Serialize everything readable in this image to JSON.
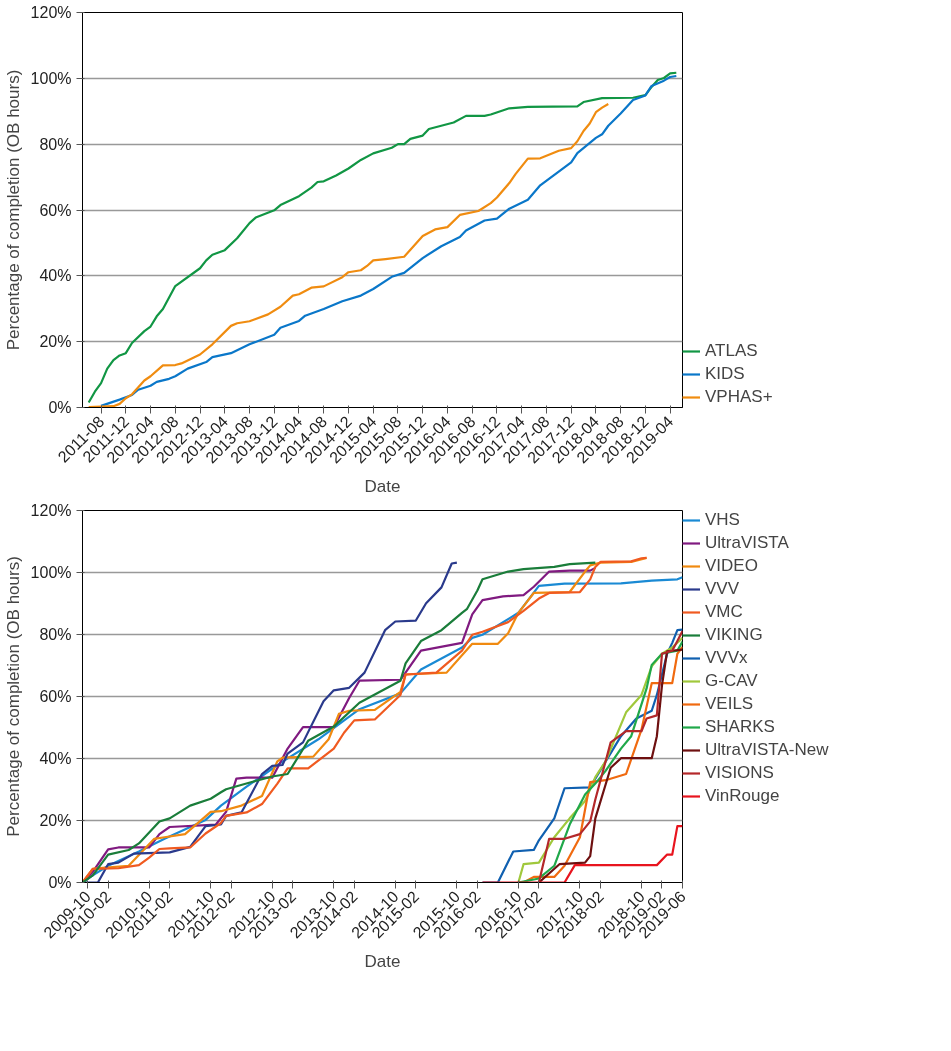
{
  "chart_data": [
    {
      "type": "line",
      "xlabel": "Date",
      "ylabel": "Percentage of completion (OB hours)",
      "xlim": [
        "2011-05",
        "2019-06"
      ],
      "xticks": [
        "2011-08",
        "2011-12",
        "2012-04",
        "2012-08",
        "2012-12",
        "2013-04",
        "2013-08",
        "2013-12",
        "2014-04",
        "2014-08",
        "2014-12",
        "2015-04",
        "2015-08",
        "2015-12",
        "2016-04",
        "2016-08",
        "2016-12",
        "2017-04",
        "2017-08",
        "2017-12",
        "2018-04",
        "2018-08",
        "2018-12",
        "2019-04"
      ],
      "ylim": [
        0,
        120
      ],
      "yticks": [
        {
          "value": 0,
          "label": "0%"
        },
        {
          "value": 20,
          "label": "20%"
        },
        {
          "value": 40,
          "label": "40%"
        },
        {
          "value": 60,
          "label": "60%"
        },
        {
          "value": 80,
          "label": "80%"
        },
        {
          "value": 100,
          "label": "100%"
        },
        {
          "value": 120,
          "label": "120%"
        }
      ],
      "grid": "y",
      "legend": "bottom right",
      "line_style": "solid",
      "series": [
        {
          "name": "ATLAS",
          "color": "#119644",
          "x": [
            "2011-06",
            "2011-07",
            "2011-08",
            "2011-09",
            "2011-10",
            "2011-11",
            "2011-12",
            "2012-01",
            "2012-03",
            "2012-04",
            "2012-05",
            "2012-06",
            "2012-08",
            "2012-12",
            "2013-01",
            "2013-02",
            "2013-04",
            "2013-06",
            "2013-08",
            "2013-09",
            "2013-12",
            "2014-01",
            "2014-04",
            "2014-06",
            "2014-07",
            "2014-08",
            "2014-10",
            "2014-12",
            "2015-02",
            "2015-04",
            "2015-07",
            "2015-08",
            "2015-09",
            "2015-10",
            "2015-12",
            "2016-01",
            "2016-05",
            "2016-07",
            "2016-10",
            "2016-11",
            "2017-02",
            "2017-05",
            "2018-01",
            "2018-02",
            "2018-05",
            "2018-10",
            "2018-12",
            "2019-01",
            "2019-02",
            "2019-03",
            "2019-04",
            "2019-05"
          ],
          "values": [
            1.5,
            4.8,
            7.4,
            11.8,
            14.4,
            15.8,
            16.5,
            19.6,
            23.2,
            24.6,
            27.7,
            29.9,
            36.9,
            42.3,
            44.7,
            46.4,
            47.8,
            51.4,
            56,
            57.7,
            59.9,
            61.5,
            64.2,
            66.8,
            68.5,
            68.7,
            70.5,
            72.6,
            75.2,
            77.2,
            78.9,
            80,
            80,
            81.6,
            82.6,
            84.6,
            86.6,
            88.6,
            88.6,
            89,
            90.9,
            91.3,
            91.5,
            92.8,
            94,
            94.1,
            94.9,
            97.4,
            99.5,
            100.1,
            101.5,
            101.7
          ]
        },
        {
          "name": "KIDS",
          "color": "#0a77c9",
          "x": [
            "2011-08",
            "2011-11",
            "2012-01",
            "2012-02",
            "2012-04",
            "2012-05",
            "2012-07",
            "2012-08",
            "2012-10",
            "2013-01",
            "2013-02",
            "2013-05",
            "2013-08",
            "2013-12",
            "2014-01",
            "2014-04",
            "2014-05",
            "2014-08",
            "2014-11",
            "2015-02",
            "2015-04",
            "2015-07",
            "2015-09",
            "2015-12",
            "2016-03",
            "2016-06",
            "2016-07",
            "2016-10",
            "2016-12",
            "2017-02",
            "2017-05",
            "2017-07",
            "2017-12",
            "2018-01",
            "2018-04",
            "2018-05",
            "2018-06",
            "2018-08",
            "2018-10",
            "2018-12",
            "2019-01",
            "2019-03",
            "2019-04",
            "2019-05"
          ],
          "values": [
            0.5,
            2.4,
            3.8,
            5.4,
            6.6,
            7.8,
            8.7,
            9.5,
            11.8,
            13.8,
            15.3,
            16.5,
            19.2,
            22.1,
            24.2,
            26.3,
            27.9,
            29.9,
            32.3,
            34,
            36,
            39.7,
            40.9,
            45.4,
            49,
            51.8,
            53.8,
            56.8,
            57.4,
            60.4,
            63.1,
            67.5,
            74.5,
            77.3,
            81.9,
            83,
            85.6,
            89.3,
            93.4,
            94.8,
            97.7,
            99.3,
            100.4,
            100.7
          ]
        },
        {
          "name": "VPHAS+",
          "color": "#f08c10",
          "x": [
            "2011-06",
            "2011-10",
            "2011-11",
            "2011-12",
            "2012-01",
            "2012-03",
            "2012-04",
            "2012-06",
            "2012-08",
            "2012-09",
            "2012-11",
            "2012-12",
            "2013-02",
            "2013-05",
            "2013-06",
            "2013-08",
            "2013-11",
            "2014-01",
            "2014-03",
            "2014-04",
            "2014-06",
            "2014-08",
            "2014-11",
            "2014-12",
            "2015-02",
            "2015-03",
            "2015-04",
            "2015-06",
            "2015-09",
            "2015-12",
            "2016-02",
            "2016-04",
            "2016-06",
            "2016-09",
            "2016-11",
            "2016-12",
            "2017-02",
            "2017-03",
            "2017-05",
            "2017-07",
            "2017-10",
            "2017-12",
            "2018-01",
            "2018-02",
            "2018-03",
            "2018-04",
            "2018-05",
            "2018-06"
          ],
          "values": [
            0.1,
            0.4,
            1.1,
            2.8,
            4,
            8.2,
            9.5,
            12.8,
            12.9,
            13.4,
            15.2,
            16.1,
            19.2,
            24.8,
            25.6,
            26.2,
            28.3,
            30.6,
            34,
            34.4,
            36.4,
            36.8,
            39.6,
            41.1,
            41.7,
            43,
            44.7,
            45.1,
            45.8,
            52.1,
            54.1,
            54.8,
            58.5,
            59.7,
            62.1,
            63.8,
            68.2,
            70.9,
            75.6,
            75.7,
            78,
            78.8,
            80.9,
            84,
            86.3,
            89.7,
            91.1,
            92.2
          ]
        }
      ]
    },
    {
      "type": "line",
      "xlabel": "Date",
      "ylabel": "Percentage of completion (OB hours)",
      "xlim": [
        "2009-09",
        "2019-06"
      ],
      "xticks": [
        "2009-10",
        "2010-02",
        "2010-10",
        "2011-02",
        "2011-10",
        "2012-02",
        "2012-10",
        "2013-02",
        "2013-10",
        "2014-02",
        "2014-10",
        "2015-02",
        "2015-10",
        "2016-02",
        "2016-10",
        "2017-02",
        "2017-10",
        "2018-02",
        "2018-10",
        "2019-02",
        "2019-06"
      ],
      "ylim": [
        0,
        120
      ],
      "yticks": [
        {
          "value": 0,
          "label": "0%"
        },
        {
          "value": 20,
          "label": "20%"
        },
        {
          "value": 40,
          "label": "40%"
        },
        {
          "value": 60,
          "label": "60%"
        },
        {
          "value": 80,
          "label": "80%"
        },
        {
          "value": 100,
          "label": "100%"
        },
        {
          "value": 120,
          "label": "120%"
        }
      ],
      "grid": "y",
      "legend": "top right",
      "line_style": "solid",
      "series": [
        {
          "name": "VHS",
          "color": "#1a8ad4",
          "x": [
            "2009-09",
            "2009-11",
            "2010-02",
            "2010-08",
            "2011-01",
            "2011-09",
            "2011-12",
            "2012-05",
            "2012-12",
            "2013-07",
            "2014-03",
            "2014-11",
            "2015-03",
            "2015-11",
            "2016-01",
            "2016-03",
            "2016-10",
            "2017-02",
            "2017-07",
            "2018-06",
            "2018-12",
            "2019-05",
            "2019-06"
          ],
          "values": [
            0,
            2.3,
            5.4,
            10,
            14.1,
            20.2,
            24.8,
            30.9,
            39,
            46.2,
            55.9,
            61,
            68.7,
            75.8,
            78.9,
            79.9,
            87,
            95.7,
            96.4,
            96.5,
            97.4,
            97.8,
            98.5
          ]
        },
        {
          "name": "UltraVISTA",
          "color": "#801a80",
          "x": [
            "2009-09",
            "2009-11",
            "2010-02",
            "2010-04",
            "2010-10",
            "2010-12",
            "2011-02",
            "2011-11",
            "2012-01",
            "2012-03",
            "2012-05",
            "2012-10",
            "2013-01",
            "2013-04",
            "2013-10",
            "2014-01",
            "2014-03",
            "2014-11",
            "2015-03",
            "2015-11",
            "2015-12",
            "2016-01",
            "2016-03",
            "2016-07",
            "2016-11",
            "2017-01",
            "2017-04",
            "2017-08",
            "2017-12",
            "2018-01"
          ],
          "values": [
            0,
            3.4,
            10.7,
            11.3,
            11.3,
            15.6,
            17.9,
            18.7,
            22.8,
            33.5,
            33.8,
            33.8,
            43.2,
            50.1,
            50.1,
            59.5,
            65.1,
            65.4,
            74.8,
            77.3,
            81.9,
            86.5,
            91.1,
            92.3,
            92.7,
            95.4,
            100.3,
            100.6,
            100.6,
            101.5
          ]
        },
        {
          "name": "VIDEO",
          "color": "#f08a10",
          "x": [
            "2009-09",
            "2009-11",
            "2010-01",
            "2010-06",
            "2010-11",
            "2011-01",
            "2011-05",
            "2011-10",
            "2011-12",
            "2012-04",
            "2012-08",
            "2012-11",
            "2012-12",
            "2013-06",
            "2013-09",
            "2013-11",
            "2014-01",
            "2014-06",
            "2014-11",
            "2014-12",
            "2015-08",
            "2015-11",
            "2016-01",
            "2016-06",
            "2016-08",
            "2016-10",
            "2017-01",
            "2017-08",
            "2017-11",
            "2017-12",
            "2018-02",
            "2018-08",
            "2018-11"
          ],
          "values": [
            0,
            4.4,
            4.7,
            5.4,
            14.1,
            14.6,
            15.6,
            22.8,
            23,
            24.8,
            27.9,
            39.1,
            40.3,
            40.6,
            46.2,
            54.4,
            55.4,
            55.7,
            61.5,
            67.1,
            67.7,
            73.3,
            77,
            77,
            80.4,
            87,
            93.4,
            93.7,
            100.3,
            102.3,
            103.2,
            103.4,
            104.7
          ]
        },
        {
          "name": "VVV",
          "color": "#2a3a8c",
          "x": [
            "2009-09",
            "2009-12",
            "2010-02",
            "2010-04",
            "2010-07",
            "2011-02",
            "2011-06",
            "2011-09",
            "2011-12",
            "2012-01",
            "2012-04",
            "2012-08",
            "2012-10",
            "2012-12",
            "2013-01",
            "2013-04",
            "2013-08",
            "2013-10",
            "2014-01",
            "2014-04",
            "2014-08",
            "2014-10",
            "2015-02",
            "2015-04",
            "2015-07",
            "2015-09",
            "2015-10"
          ],
          "values": [
            0,
            0,
            5.9,
            6.4,
            9.3,
            9.7,
            11.5,
            18.2,
            18.7,
            21.5,
            22.6,
            35,
            37.6,
            37.9,
            41.6,
            45.2,
            58.5,
            62,
            62.8,
            67.7,
            81.4,
            84.2,
            84.5,
            90.1,
            95.2,
            102.9,
            103.2
          ]
        },
        {
          "name": "VMC",
          "color": "#f05a20",
          "x": [
            "2009-09",
            "2009-11",
            "2010-04",
            "2010-08",
            "2010-10",
            "2010-12",
            "2011-02",
            "2011-06",
            "2011-09",
            "2011-12",
            "2012-01",
            "2012-05",
            "2012-08",
            "2012-11",
            "2013-01",
            "2013-05",
            "2013-10",
            "2013-12",
            "2014-02",
            "2014-06",
            "2014-11",
            "2014-12",
            "2015-06",
            "2015-11",
            "2016-01",
            "2016-03",
            "2016-08",
            "2016-11",
            "2017-02",
            "2017-04",
            "2017-10",
            "2017-12",
            "2018-01",
            "2018-02",
            "2018-08",
            "2018-10",
            "2018-11"
          ],
          "values": [
            0,
            4.4,
            4.6,
            5.6,
            8,
            10.8,
            11,
            11.3,
            15.8,
            19.2,
            21.5,
            22.6,
            25.3,
            31.9,
            36.8,
            36.8,
            43.2,
            48.3,
            52.3,
            52.6,
            60.5,
            67.1,
            67.7,
            74.8,
            79.9,
            80.9,
            84,
            87.6,
            91.6,
            93.4,
            93.7,
            97.8,
            101.8,
            103.4,
            103.6,
            104.6,
            104.7
          ]
        },
        {
          "name": "VIKING",
          "color": "#1a7d3a",
          "x": [
            "2009-09",
            "2009-11",
            "2010-02",
            "2010-06",
            "2010-08",
            "2010-12",
            "2011-02",
            "2011-06",
            "2011-10",
            "2011-12",
            "2012-01",
            "2012-06",
            "2012-10",
            "2013-01",
            "2013-05",
            "2013-10",
            "2014-03",
            "2014-11",
            "2014-12",
            "2015-03",
            "2015-07",
            "2015-11",
            "2015-12",
            "2016-02",
            "2016-03",
            "2016-08",
            "2016-11",
            "2017-05",
            "2017-08",
            "2018-01"
          ],
          "values": [
            0,
            2.3,
            9,
            10.5,
            12.6,
            19.7,
            20.7,
            24.8,
            27,
            29.1,
            30.1,
            32.4,
            34.2,
            35,
            45.7,
            50.3,
            58,
            65.1,
            70.7,
            77.9,
            81.4,
            87,
            88.3,
            94.2,
            97.8,
            100.3,
            101.1,
            101.8,
            102.7,
            103.2
          ]
        },
        {
          "name": "VVVx",
          "color": "#1060b0",
          "x": [
            "2016-03",
            "2016-06",
            "2016-09",
            "2017-01",
            "2017-02",
            "2017-05",
            "2017-07",
            "2017-12",
            "2018-01",
            "2018-06",
            "2018-09",
            "2018-12",
            "2019-01",
            "2019-03",
            "2019-04",
            "2019-05",
            "2019-06"
          ],
          "values": [
            0,
            0,
            10,
            10.5,
            13.6,
            20.7,
            30.4,
            30.7,
            33.5,
            47.2,
            52.9,
            55.4,
            60.5,
            73.8,
            77.3,
            81.4,
            81.6
          ]
        },
        {
          "name": "G-CAV",
          "color": "#a0c83c",
          "x": [
            "2016-10",
            "2016-11",
            "2017-02",
            "2017-05",
            "2017-08",
            "2017-11",
            "2018-01",
            "2018-03",
            "2018-07",
            "2018-10",
            "2018-12",
            "2019-02",
            "2019-04",
            "2019-06"
          ],
          "values": [
            0,
            5.9,
            6.4,
            14.6,
            20.7,
            26.3,
            34,
            39.1,
            54.9,
            60.5,
            69.7,
            73.8,
            75.8,
            78.9
          ]
        },
        {
          "name": "VEILS",
          "color": "#f06a10",
          "x": [
            "2016-11",
            "2017-01",
            "2017-05",
            "2017-07",
            "2017-10",
            "2017-12",
            "2018-03",
            "2018-07",
            "2018-10",
            "2018-12",
            "2019-04",
            "2019-05",
            "2019-06"
          ],
          "values": [
            0,
            1.8,
            1.8,
            5.4,
            14.6,
            32.4,
            33,
            35,
            49.3,
            64.3,
            64.3,
            73.8,
            76
          ]
        },
        {
          "name": "SHARKS",
          "color": "#20a84a",
          "x": [
            "2016-10",
            "2017-02",
            "2017-05",
            "2017-08",
            "2017-11",
            "2018-01",
            "2018-03",
            "2018-06",
            "2018-08",
            "2018-11",
            "2018-12",
            "2019-02",
            "2019-05",
            "2019-06"
          ],
          "values": [
            0,
            1.3,
            5.4,
            18.7,
            28.4,
            31.9,
            36,
            43.2,
            47.2,
            62.6,
            70.2,
            73.8,
            74.8,
            77.7
          ]
        },
        {
          "name": "UltraVISTA-New",
          "color": "#6e1010",
          "x": [
            "2017-02",
            "2017-06",
            "2017-11",
            "2017-12",
            "2018-01",
            "2018-04",
            "2018-06",
            "2018-12",
            "2019-01",
            "2019-02",
            "2019-03",
            "2019-06"
          ],
          "values": [
            0,
            5.9,
            6.4,
            8.5,
            20.7,
            37,
            40.1,
            40.1,
            47.2,
            63.6,
            74.6,
            75.1
          ]
        },
        {
          "name": "VISIONS",
          "color": "#b4282a",
          "x": [
            "2017-02",
            "2017-04",
            "2017-07",
            "2017-10",
            "2017-12",
            "2018-01",
            "2018-04",
            "2018-07",
            "2018-10",
            "2018-11",
            "2019-01",
            "2019-02",
            "2019-04",
            "2019-05",
            "2019-06"
          ],
          "values": [
            0,
            14.1,
            14.1,
            15.6,
            19.7,
            26.8,
            45.2,
            48.8,
            48.8,
            52.9,
            53.9,
            73.8,
            74.8,
            77.9,
            81.1
          ]
        },
        {
          "name": "VinRouge",
          "color": "#e8141e",
          "x": [
            "2016-03",
            "2017-07",
            "2017-09",
            "2019-01",
            "2019-03",
            "2019-04",
            "2019-05",
            "2019-06"
          ],
          "values": [
            0,
            0,
            5.6,
            5.6,
            9,
            9,
            18.2,
            18.2
          ]
        }
      ]
    }
  ]
}
